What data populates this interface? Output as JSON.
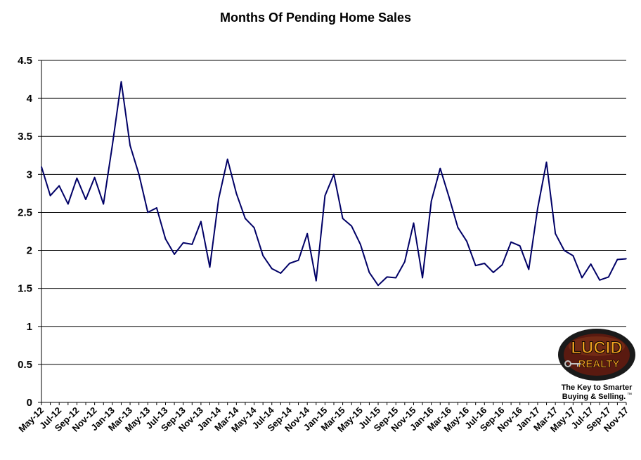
{
  "chart_data": {
    "type": "line",
    "title": "Months Of Pending Home Sales",
    "xlabel": "",
    "ylabel": "",
    "ylim": [
      0,
      4.5
    ],
    "yticks": [
      "0",
      "0.5",
      "1",
      "1.5",
      "2",
      "2.5",
      "3",
      "3.5",
      "4",
      "4.5"
    ],
    "grid": true,
    "line_color": "#000066",
    "x": [
      "May-12",
      "Jun-12",
      "Jul-12",
      "Aug-12",
      "Sep-12",
      "Oct-12",
      "Nov-12",
      "Dec-12",
      "Jan-13",
      "Feb-13",
      "Mar-13",
      "Apr-13",
      "May-13",
      "Jun-13",
      "Jul-13",
      "Aug-13",
      "Sep-13",
      "Oct-13",
      "Nov-13",
      "Dec-13",
      "Jan-14",
      "Feb-14",
      "Mar-14",
      "Apr-14",
      "May-14",
      "Jun-14",
      "Jul-14",
      "Aug-14",
      "Sep-14",
      "Oct-14",
      "Nov-14",
      "Dec-14",
      "Jan-15",
      "Feb-15",
      "Mar-15",
      "Apr-15",
      "May-15",
      "Jun-15",
      "Jul-15",
      "Aug-15",
      "Sep-15",
      "Oct-15",
      "Nov-15",
      "Dec-15",
      "Jan-16",
      "Feb-16",
      "Mar-16",
      "Apr-16",
      "May-16",
      "Jun-16",
      "Jul-16",
      "Aug-16",
      "Sep-16",
      "Oct-16",
      "Nov-16",
      "Dec-16",
      "Jan-17",
      "Feb-17",
      "Mar-17",
      "Apr-17",
      "May-17",
      "Jun-17",
      "Jul-17",
      "Aug-17",
      "Sep-17",
      "Oct-17",
      "Nov-17"
    ],
    "x_tick_labels": [
      "May-12",
      "Jul-12",
      "Sep-12",
      "Nov-12",
      "Jan-13",
      "Mar-13",
      "May-13",
      "Jul-13",
      "Sep-13",
      "Nov-13",
      "Jan-14",
      "Mar-14",
      "May-14",
      "Jul-14",
      "Sep-14",
      "Nov-14",
      "Jan-15",
      "Mar-15",
      "May-15",
      "Jul-15",
      "Sep-15",
      "Nov-15",
      "Jan-16",
      "Mar-16",
      "May-16",
      "Jul-16",
      "Sep-16",
      "Nov-16",
      "Jan-17",
      "Mar-17",
      "May-17",
      "Jul-17",
      "Sep-17",
      "Nov-17"
    ],
    "series": [
      {
        "values": [
          3.1,
          2.72,
          2.85,
          2.61,
          2.95,
          2.67,
          2.96,
          2.61,
          3.38,
          4.22,
          3.38,
          3.0,
          2.5,
          2.56,
          2.15,
          1.95,
          2.1,
          2.08,
          2.38,
          1.78,
          2.68,
          3.2,
          2.75,
          2.42,
          2.3,
          1.93,
          1.76,
          1.7,
          1.83,
          1.87,
          2.22,
          1.6,
          2.72,
          3.0,
          2.42,
          2.32,
          2.08,
          1.71,
          1.54,
          1.65,
          1.64,
          1.85,
          2.36,
          1.64,
          2.65,
          3.08,
          2.7,
          2.3,
          2.12,
          1.8,
          1.83,
          1.71,
          1.81,
          2.11,
          2.06,
          1.75,
          2.55,
          3.16,
          2.22,
          2.0,
          1.93,
          1.64,
          1.82,
          1.61,
          1.65,
          1.88,
          1.89
        ]
      }
    ]
  },
  "logo": {
    "name": "lucid-realty-logo",
    "text_lucid": "LUCID",
    "text_realty": "REALTY",
    "tagline_1": "The Key to Smarter",
    "tagline_2": "Buying & Selling.",
    "tm": "™",
    "colors": {
      "ring": "#1a1a1a",
      "inner": "#5a1a10",
      "letters": "#f2a020",
      "outline": "#000000"
    }
  }
}
